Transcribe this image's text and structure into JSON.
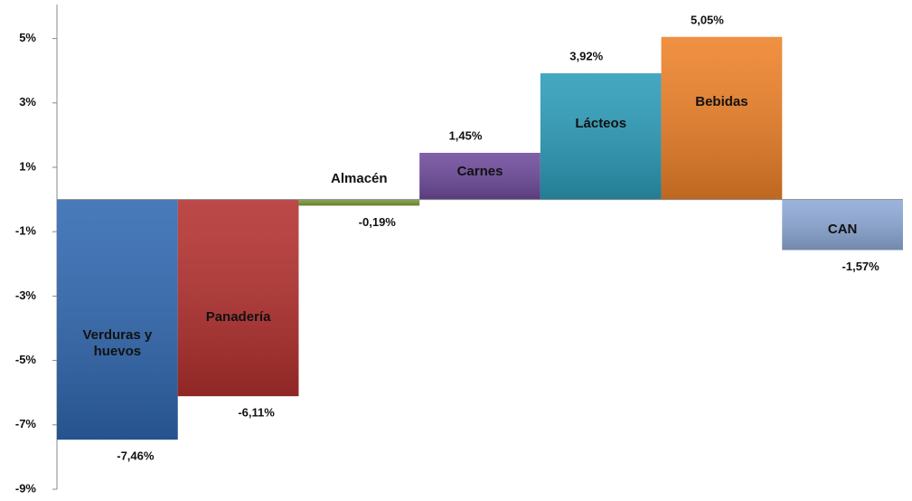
{
  "chart_data": {
    "type": "bar",
    "categories": [
      "Verduras y huevos",
      "Panadería",
      "Almacén",
      "Carnes",
      "Lácteos",
      "Bebidas",
      "CAN"
    ],
    "values": [
      -7.46,
      -6.11,
      -0.19,
      1.45,
      3.92,
      5.05,
      -1.57
    ],
    "value_labels": [
      "-7,46%",
      "-6,11%",
      "-0,19%",
      "1,45%",
      "3,92%",
      "5,05%",
      "-1,57%"
    ],
    "colors": [
      "#2f67b0",
      "#b3302e",
      "#7a9a3a",
      "#6e4a9c",
      "#2b9cb9",
      "#ee8128",
      "#8eaad8"
    ],
    "ylim": [
      -9,
      6
    ],
    "yticks": [
      {
        "value": 5,
        "label": "5%"
      },
      {
        "value": 3,
        "label": "3%"
      },
      {
        "value": 1,
        "label": "1%"
      },
      {
        "value": -1,
        "label": "-1%"
      },
      {
        "value": -3,
        "label": "-3%"
      },
      {
        "value": -5,
        "label": "-5%"
      },
      {
        "value": -7,
        "label": "-7%"
      },
      {
        "value": -9,
        "label": "-9%"
      }
    ],
    "grid": false
  }
}
